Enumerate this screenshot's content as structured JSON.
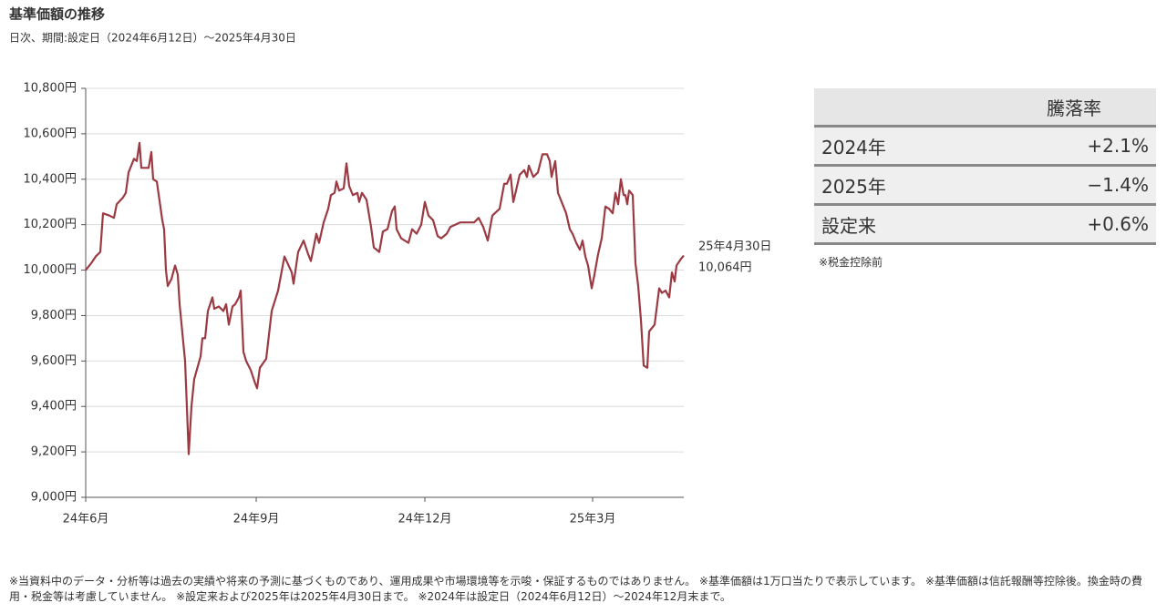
{
  "chart_data": {
    "type": "line",
    "title": "基準価額の推移",
    "subtitle": "日次、期間:設定日（2024年6月12日）〜2025年4月30日",
    "x": [
      0,
      6,
      11,
      16,
      19,
      26,
      31,
      34,
      41,
      44,
      47,
      53,
      56,
      59,
      61,
      69,
      72,
      74,
      78,
      84,
      86,
      88,
      90,
      94,
      98,
      101,
      103,
      109,
      113,
      116,
      119,
      126,
      128,
      131,
      134,
      139,
      141,
      146,
      151,
      154,
      157,
      161,
      164,
      168,
      170,
      173,
      176,
      181,
      186,
      188,
      191,
      198,
      204,
      211,
      218,
      226,
      228,
      233,
      239,
      244,
      247,
      253,
      256,
      261,
      266,
      269,
      273,
      275,
      278,
      283,
      286,
      289,
      293,
      298,
      300,
      303,
      308,
      313,
      316,
      319,
      322,
      326,
      331,
      336,
      339,
      341,
      346,
      354,
      358,
      363,
      368,
      372,
      376,
      381,
      386,
      390,
      396,
      400,
      411,
      426,
      431,
      436,
      441,
      446,
      454,
      459,
      462,
      466,
      469,
      472,
      476,
      481,
      484,
      486,
      491,
      496,
      501,
      506,
      509,
      511,
      515,
      518,
      524,
      527,
      531,
      534,
      538,
      542,
      545,
      548,
      551,
      555,
      558,
      562,
      566,
      570,
      574,
      578,
      581,
      584,
      587,
      590,
      592,
      594,
      596,
      600,
      603,
      606,
      609,
      612,
      616,
      618,
      624,
      629,
      632,
      636,
      640,
      643,
      646,
      648,
      653,
      656
    ],
    "series": [
      {
        "color": "#9b3a42",
        "values": [
          10000,
          10030,
          10060,
          10080,
          10250,
          10240,
          10230,
          10290,
          10320,
          10340,
          10430,
          10490,
          10480,
          10560,
          10450,
          10450,
          10520,
          10400,
          10390,
          10220,
          10180,
          10000,
          9930,
          9960,
          10020,
          9980,
          9850,
          9600,
          9190,
          9400,
          9520,
          9620,
          9700,
          9700,
          9820,
          9880,
          9830,
          9840,
          9820,
          9850,
          9760,
          9840,
          9850,
          9880,
          9910,
          9640,
          9600,
          9560,
          9500,
          9480,
          9570,
          9610,
          9820,
          9910,
          10060,
          9990,
          9940,
          10080,
          10130,
          10070,
          10040,
          10160,
          10120,
          10210,
          10270,
          10330,
          10340,
          10390,
          10350,
          10360,
          10470,
          10370,
          10330,
          10340,
          10300,
          10340,
          10310,
          10190,
          10100,
          10090,
          10080,
          10170,
          10180,
          10260,
          10280,
          10180,
          10140,
          10120,
          10180,
          10160,
          10200,
          10300,
          10240,
          10220,
          10150,
          10140,
          10160,
          10190,
          10210,
          10210,
          10230,
          10190,
          10130,
          10240,
          10270,
          10380,
          10380,
          10420,
          10300,
          10350,
          10420,
          10440,
          10410,
          10460,
          10410,
          10430,
          10510,
          10510,
          10480,
          10410,
          10480,
          10340,
          10280,
          10250,
          10180,
          10160,
          10120,
          10090,
          10130,
          10060,
          10020,
          9920,
          9980,
          10070,
          10140,
          10280,
          10270,
          10250,
          10340,
          10290,
          10400,
          10330,
          10330,
          10290,
          10350,
          10330,
          10030,
          9930,
          9780,
          9580,
          9570,
          9730,
          9760,
          9920,
          9900,
          9910,
          9880,
          9990,
          9950,
          10020,
          10050,
          10064
        ]
      }
    ],
    "xlim": [
      0,
      656
    ],
    "xticks": [
      {
        "value": 0,
        "label": "24年6月"
      },
      {
        "value": 187,
        "label": "24年9月"
      },
      {
        "value": 372,
        "label": "24年12月"
      },
      {
        "value": 556,
        "label": "25年3月"
      }
    ],
    "ylim": [
      9000,
      10800
    ],
    "yticks": [
      {
        "value": 9000,
        "label": "9,000円"
      },
      {
        "value": 9200,
        "label": "9,200円"
      },
      {
        "value": 9400,
        "label": "9,400円"
      },
      {
        "value": 9600,
        "label": "9,600円"
      },
      {
        "value": 9800,
        "label": "9,800円"
      },
      {
        "value": 10000,
        "label": "10,000円"
      },
      {
        "value": 10200,
        "label": "10,200円"
      },
      {
        "value": 10400,
        "label": "10,400円"
      },
      {
        "value": 10600,
        "label": "10,600円"
      },
      {
        "value": 10800,
        "label": "10,800円"
      }
    ],
    "grid": true,
    "annotations": [
      "25年4月30日",
      "10,064円"
    ]
  },
  "performance_table": {
    "header": "騰落率",
    "rows": [
      [
        "2024年",
        "+2.1%"
      ],
      [
        "2025年",
        "−1.4%"
      ],
      [
        "設定来",
        "+0.6%"
      ]
    ],
    "note": "※税金控除前"
  },
  "footnote": "※当資料中のデータ・分析等は過去の実績や将来の予測に基づくものであり、運用成果や市場環境等を示唆・保証するものではありません。 ※基準価額は1万口当たりで表示しています。 ※基準価額は信託報酬等控除後。換金時の費用・税金等は考慮していません。 ※設定来および2025年は2025年4月30日まで。 ※2024年は設定日（2024年6月12日）〜2024年12月末まで。"
}
